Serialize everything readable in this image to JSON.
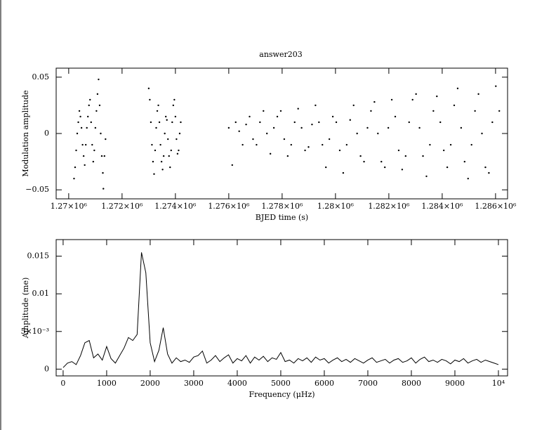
{
  "chart_data": [
    {
      "type": "scatter",
      "title": "answer203",
      "x_label": "BJED time (s)",
      "y_label": "Modulation amplitude",
      "xlim": [
        1269530,
        1286450
      ],
      "ylim": [
        -0.058,
        0.058
      ],
      "xticks": [
        {
          "value": 1270000,
          "label": "1.27×10⁶"
        },
        {
          "value": 1272000,
          "label": "1.272×10⁶"
        },
        {
          "value": 1274000,
          "label": "1.274×10⁶"
        },
        {
          "value": 1276000,
          "label": "1.276×10⁶"
        },
        {
          "value": 1278000,
          "label": "1.278×10⁶"
        },
        {
          "value": 1280000,
          "label": "1.28×10⁶"
        },
        {
          "value": 1282000,
          "label": "1.282×10⁶"
        },
        {
          "value": 1284000,
          "label": "1.284×10⁶"
        },
        {
          "value": 1286000,
          "label": "1.286×10⁶"
        }
      ],
      "yticks": [
        {
          "value": -0.05,
          "label": "−0.05"
        },
        0,
        0.05
      ],
      "color": "#000000",
      "x": [
        1270200,
        1270240,
        1270280,
        1270320,
        1270360,
        1270400,
        1270440,
        1270480,
        1270520,
        1270560,
        1270600,
        1270640,
        1270680,
        1270720,
        1270760,
        1270800,
        1270840,
        1270880,
        1270920,
        1270960,
        1271000,
        1271040,
        1271080,
        1271120,
        1271160,
        1271200,
        1271240,
        1271280,
        1271300,
        1271340,
        1271380,
        1273000,
        1273040,
        1273080,
        1273120,
        1273160,
        1273200,
        1273240,
        1273280,
        1273320,
        1273360,
        1273400,
        1273440,
        1273480,
        1273520,
        1273560,
        1273600,
        1273640,
        1273680,
        1273720,
        1273760,
        1273800,
        1273840,
        1273880,
        1273920,
        1273960,
        1274000,
        1274040,
        1274080,
        1274120,
        1274160,
        1274200,
        1276000,
        1276130,
        1276260,
        1276390,
        1276520,
        1276650,
        1276780,
        1276910,
        1277040,
        1277170,
        1277300,
        1277430,
        1277560,
        1277690,
        1277820,
        1277950,
        1278080,
        1278210,
        1278340,
        1278470,
        1278600,
        1278730,
        1278860,
        1278990,
        1279120,
        1279250,
        1279380,
        1279510,
        1279640,
        1279770,
        1279900,
        1280030,
        1280160,
        1280290,
        1280420,
        1280550,
        1280680,
        1280810,
        1280940,
        1281070,
        1281200,
        1281330,
        1281460,
        1281590,
        1281720,
        1281850,
        1281980,
        1282110,
        1282240,
        1282370,
        1282500,
        1282630,
        1282760,
        1282890,
        1283020,
        1283150,
        1283280,
        1283410,
        1283540,
        1283670,
        1283800,
        1283930,
        1284060,
        1284190,
        1284320,
        1284450,
        1284580,
        1284710,
        1284840,
        1284970,
        1285100,
        1285230,
        1285360,
        1285490,
        1285620,
        1285750,
        1285880,
        1286010,
        1286140
      ],
      "values": [
        -0.04,
        -0.03,
        -0.015,
        0.0,
        0.01,
        0.02,
        0.015,
        0.005,
        -0.01,
        -0.02,
        -0.028,
        -0.01,
        0.005,
        0.015,
        0.025,
        0.03,
        0.01,
        -0.01,
        -0.025,
        -0.015,
        0.005,
        0.02,
        0.035,
        0.048,
        0.025,
        0.0,
        -0.02,
        -0.035,
        -0.049,
        -0.02,
        -0.005,
        0.04,
        0.03,
        0.01,
        -0.01,
        -0.025,
        -0.036,
        -0.015,
        0.005,
        0.02,
        0.025,
        0.01,
        -0.01,
        -0.025,
        -0.032,
        -0.02,
        0.0,
        0.015,
        0.012,
        -0.005,
        -0.02,
        -0.03,
        -0.015,
        0.01,
        0.025,
        0.03,
        0.015,
        -0.005,
        -0.018,
        -0.015,
        0.0,
        0.01,
        0.005,
        -0.028,
        0.01,
        0.002,
        -0.01,
        0.008,
        0.015,
        -0.005,
        -0.01,
        0.01,
        0.02,
        0.0,
        -0.018,
        0.005,
        0.015,
        0.02,
        -0.005,
        -0.02,
        -0.01,
        0.01,
        0.022,
        0.005,
        -0.015,
        -0.012,
        0.008,
        0.025,
        0.01,
        -0.01,
        -0.03,
        -0.005,
        0.015,
        0.01,
        -0.015,
        -0.035,
        -0.01,
        0.012,
        0.025,
        0.0,
        -0.02,
        -0.025,
        0.005,
        0.02,
        0.028,
        0.0,
        -0.025,
        -0.03,
        0.005,
        0.03,
        0.015,
        -0.015,
        -0.032,
        -0.02,
        0.01,
        0.03,
        0.035,
        0.005,
        -0.02,
        -0.038,
        -0.01,
        0.02,
        0.033,
        0.01,
        -0.015,
        -0.03,
        -0.01,
        0.025,
        0.04,
        0.005,
        -0.025,
        -0.04,
        -0.01,
        0.02,
        0.035,
        0.0,
        -0.03,
        -0.035,
        0.01,
        0.042,
        0.02
      ]
    },
    {
      "type": "line",
      "x_label": "Frequency (μHz)",
      "y_label": "Amplitude (me)",
      "xlim": [
        -160,
        10210
      ],
      "ylim": [
        -0.0009,
        0.0172
      ],
      "xticks": [
        0,
        1000,
        2000,
        3000,
        4000,
        5000,
        6000,
        7000,
        8000,
        9000,
        {
          "value": 10000,
          "label": "10⁴"
        }
      ],
      "yticks": [
        0,
        {
          "value": 0.005,
          "label": "5×10⁻³"
        },
        0.01,
        0.015
      ],
      "color": "#000000",
      "x": [
        0,
        100,
        200,
        300,
        400,
        500,
        600,
        700,
        800,
        900,
        1000,
        1100,
        1200,
        1300,
        1400,
        1500,
        1600,
        1700,
        1800,
        1900,
        2000,
        2100,
        2200,
        2300,
        2400,
        2500,
        2600,
        2700,
        2800,
        2900,
        3000,
        3100,
        3200,
        3300,
        3400,
        3500,
        3600,
        3700,
        3800,
        3900,
        4000,
        4100,
        4200,
        4300,
        4400,
        4500,
        4600,
        4700,
        4800,
        4900,
        5000,
        5100,
        5200,
        5300,
        5400,
        5500,
        5600,
        5700,
        5800,
        5900,
        6000,
        6100,
        6200,
        6300,
        6400,
        6500,
        6600,
        6700,
        6800,
        6900,
        7000,
        7100,
        7200,
        7300,
        7400,
        7500,
        7600,
        7700,
        7800,
        7900,
        8000,
        8100,
        8200,
        8300,
        8400,
        8500,
        8600,
        8700,
        8800,
        8900,
        9000,
        9100,
        9200,
        9300,
        9400,
        9500,
        9600,
        9700,
        9800,
        9900,
        10000
      ],
      "values": [
        0.0002,
        0.0008,
        0.001,
        0.0006,
        0.0018,
        0.0035,
        0.0038,
        0.0015,
        0.002,
        0.0012,
        0.003,
        0.0014,
        0.0008,
        0.0018,
        0.0028,
        0.0042,
        0.0038,
        0.0046,
        0.0155,
        0.0128,
        0.0035,
        0.001,
        0.0025,
        0.0055,
        0.002,
        0.0008,
        0.0015,
        0.001,
        0.0012,
        0.0009,
        0.0016,
        0.0018,
        0.0024,
        0.0008,
        0.0012,
        0.0018,
        0.001,
        0.0015,
        0.0019,
        0.0008,
        0.0014,
        0.0011,
        0.0018,
        0.0008,
        0.0016,
        0.0012,
        0.0017,
        0.001,
        0.0015,
        0.0013,
        0.0022,
        0.001,
        0.0012,
        0.0008,
        0.0014,
        0.0011,
        0.0015,
        0.0009,
        0.0016,
        0.0012,
        0.0014,
        0.0008,
        0.0012,
        0.0015,
        0.001,
        0.0013,
        0.0009,
        0.0014,
        0.0011,
        0.0008,
        0.0012,
        0.0015,
        0.0009,
        0.0011,
        0.0013,
        0.0008,
        0.0012,
        0.0014,
        0.0009,
        0.0011,
        0.0015,
        0.0008,
        0.0013,
        0.0016,
        0.001,
        0.0012,
        0.0009,
        0.0013,
        0.0011,
        0.0007,
        0.0012,
        0.001,
        0.0014,
        0.0008,
        0.0011,
        0.0013,
        0.0009,
        0.0012,
        0.001,
        0.0008,
        0.0006
      ]
    }
  ]
}
